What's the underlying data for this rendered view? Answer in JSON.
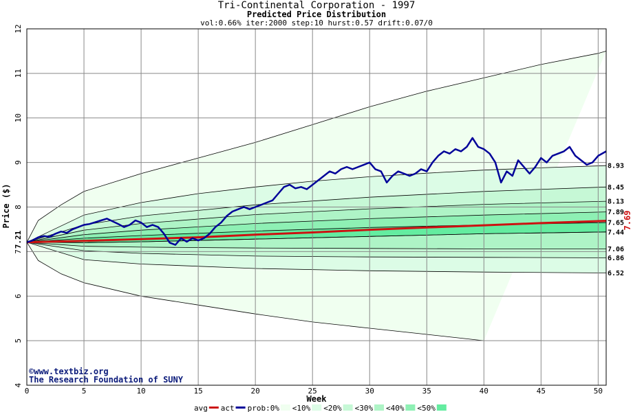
{
  "chart_data": {
    "type": "line",
    "title": "Tri-Continental Corporation - 1997",
    "subtitle": "Predicted Price Distribution",
    "params": "vol:0.66% iter:2000 step:10 hurst:0.57 drift:0.07/0",
    "xlabel": "Week",
    "ylabel": "Price ($)",
    "xlim": [
      0,
      50.7
    ],
    "ylim": [
      4,
      12
    ],
    "x_ticks": [
      0,
      5,
      10,
      15,
      20,
      25,
      30,
      35,
      40,
      45,
      50
    ],
    "y_ticks": [
      4,
      5,
      6,
      7,
      8,
      9,
      10,
      11,
      12
    ],
    "grid": true,
    "start_price_label": "7.21",
    "end_price_label": "7.69",
    "right_labels": [
      "8.93",
      "8.45",
      "8.13",
      "7.89",
      "7.65",
      "7.44",
      "7.06",
      "6.86",
      "6.52"
    ],
    "credits": [
      "©www.textbiz.org",
      "The Research Foundation of SUNY"
    ],
    "colors": {
      "avg": "#cc1111",
      "act": "#000099",
      "band0": "#f0fff0",
      "band10": "#dcfce6",
      "band20": "#c6f8d6",
      "band30": "#aef4c6",
      "band40": "#8ef0b4",
      "band50": "#64eca0"
    },
    "bands": [
      {
        "name": "prob:0%",
        "upper": [
          [
            0,
            7.21
          ],
          [
            1,
            7.7
          ],
          [
            3,
            8.05
          ],
          [
            5,
            8.35
          ],
          [
            10,
            8.75
          ],
          [
            15,
            9.1
          ],
          [
            20,
            9.45
          ],
          [
            25,
            9.85
          ],
          [
            30,
            10.25
          ],
          [
            35,
            10.6
          ],
          [
            40,
            10.9
          ],
          [
            45,
            11.2
          ],
          [
            50,
            11.45
          ],
          [
            50.7,
            11.5
          ]
        ],
        "lower": [
          [
            0,
            7.21
          ],
          [
            1,
            6.8
          ],
          [
            3,
            6.5
          ],
          [
            5,
            6.3
          ],
          [
            10,
            6.0
          ],
          [
            15,
            5.8
          ],
          [
            20,
            5.6
          ],
          [
            25,
            5.42
          ],
          [
            30,
            5.28
          ],
          [
            35,
            5.14
          ],
          [
            40,
            5.0
          ]
        ]
      },
      {
        "name": "<10%",
        "upper": [
          [
            0,
            7.21
          ],
          [
            5,
            7.82
          ],
          [
            10,
            8.1
          ],
          [
            15,
            8.3
          ],
          [
            20,
            8.45
          ],
          [
            25,
            8.58
          ],
          [
            30,
            8.68
          ],
          [
            35,
            8.76
          ],
          [
            40,
            8.83
          ],
          [
            45,
            8.88
          ],
          [
            50.7,
            8.93
          ]
        ],
        "lower": [
          [
            0,
            7.21
          ],
          [
            5,
            6.82
          ],
          [
            10,
            6.72
          ],
          [
            20,
            6.62
          ],
          [
            30,
            6.57
          ],
          [
            40,
            6.54
          ],
          [
            50.7,
            6.52
          ]
        ]
      },
      {
        "name": "<20%",
        "upper": [
          [
            0,
            7.21
          ],
          [
            5,
            7.6
          ],
          [
            10,
            7.8
          ],
          [
            20,
            8.05
          ],
          [
            30,
            8.22
          ],
          [
            40,
            8.35
          ],
          [
            50.7,
            8.45
          ]
        ],
        "lower": [
          [
            0,
            7.21
          ],
          [
            5,
            7.02
          ],
          [
            10,
            6.96
          ],
          [
            20,
            6.9
          ],
          [
            30,
            6.88
          ],
          [
            40,
            6.87
          ],
          [
            50.7,
            6.86
          ]
        ]
      },
      {
        "name": "<30%",
        "upper": [
          [
            0,
            7.21
          ],
          [
            5,
            7.48
          ],
          [
            10,
            7.63
          ],
          [
            20,
            7.83
          ],
          [
            30,
            7.96
          ],
          [
            40,
            8.06
          ],
          [
            50.7,
            8.13
          ]
        ],
        "lower": [
          [
            0,
            7.21
          ],
          [
            5,
            7.12
          ],
          [
            10,
            7.1
          ],
          [
            20,
            7.08
          ],
          [
            30,
            7.07
          ],
          [
            40,
            7.06
          ],
          [
            50.7,
            7.06
          ]
        ]
      },
      {
        "name": "<40%",
        "upper": [
          [
            0,
            7.21
          ],
          [
            5,
            7.38
          ],
          [
            10,
            7.48
          ],
          [
            20,
            7.63
          ],
          [
            30,
            7.74
          ],
          [
            40,
            7.82
          ],
          [
            50.7,
            7.89
          ]
        ],
        "lower": [
          [
            0,
            7.21
          ],
          [
            5,
            7.2
          ],
          [
            10,
            7.22
          ],
          [
            20,
            7.28
          ],
          [
            30,
            7.34
          ],
          [
            40,
            7.4
          ],
          [
            50.7,
            7.44
          ]
        ]
      },
      {
        "name": "<50%",
        "upper": [
          [
            0,
            7.21
          ],
          [
            5,
            7.3
          ],
          [
            10,
            7.36
          ],
          [
            20,
            7.46
          ],
          [
            30,
            7.54
          ],
          [
            40,
            7.6
          ],
          [
            50.7,
            7.65
          ]
        ],
        "lower": [
          [
            0,
            7.21
          ],
          [
            5,
            7.2
          ],
          [
            10,
            7.22
          ],
          [
            20,
            7.28
          ],
          [
            30,
            7.34
          ],
          [
            40,
            7.4
          ],
          [
            50.7,
            7.44
          ]
        ]
      }
    ],
    "series": [
      {
        "name": "avg",
        "values": [
          [
            0,
            7.21
          ],
          [
            5,
            7.24
          ],
          [
            10,
            7.28
          ],
          [
            15,
            7.32
          ],
          [
            20,
            7.38
          ],
          [
            25,
            7.43
          ],
          [
            30,
            7.49
          ],
          [
            35,
            7.54
          ],
          [
            40,
            7.59
          ],
          [
            45,
            7.64
          ],
          [
            50.7,
            7.69
          ]
        ]
      },
      {
        "name": "act",
        "values": [
          [
            0,
            7.21
          ],
          [
            0.5,
            7.25
          ],
          [
            1,
            7.32
          ],
          [
            1.5,
            7.35
          ],
          [
            2,
            7.33
          ],
          [
            2.5,
            7.4
          ],
          [
            3,
            7.45
          ],
          [
            3.5,
            7.42
          ],
          [
            4,
            7.5
          ],
          [
            4.5,
            7.55
          ],
          [
            5,
            7.6
          ],
          [
            5.5,
            7.62
          ],
          [
            6,
            7.66
          ],
          [
            6.5,
            7.7
          ],
          [
            7,
            7.74
          ],
          [
            7.5,
            7.68
          ],
          [
            8,
            7.62
          ],
          [
            8.5,
            7.55
          ],
          [
            9,
            7.6
          ],
          [
            9.5,
            7.7
          ],
          [
            10,
            7.65
          ],
          [
            10.5,
            7.55
          ],
          [
            11,
            7.6
          ],
          [
            11.5,
            7.55
          ],
          [
            12,
            7.4
          ],
          [
            12.5,
            7.2
          ],
          [
            13,
            7.15
          ],
          [
            13.5,
            7.3
          ],
          [
            14,
            7.22
          ],
          [
            14.5,
            7.3
          ],
          [
            15,
            7.25
          ],
          [
            15.5,
            7.3
          ],
          [
            16,
            7.4
          ],
          [
            16.5,
            7.55
          ],
          [
            17,
            7.65
          ],
          [
            17.5,
            7.8
          ],
          [
            18,
            7.9
          ],
          [
            18.5,
            7.95
          ],
          [
            19,
            8.0
          ],
          [
            19.5,
            7.95
          ],
          [
            20,
            8.0
          ],
          [
            20.5,
            8.05
          ],
          [
            21,
            8.1
          ],
          [
            21.5,
            8.15
          ],
          [
            22,
            8.3
          ],
          [
            22.5,
            8.45
          ],
          [
            23,
            8.5
          ],
          [
            23.5,
            8.42
          ],
          [
            24,
            8.45
          ],
          [
            24.5,
            8.4
          ],
          [
            25,
            8.5
          ],
          [
            25.5,
            8.6
          ],
          [
            26,
            8.7
          ],
          [
            26.5,
            8.8
          ],
          [
            27,
            8.75
          ],
          [
            27.5,
            8.85
          ],
          [
            28,
            8.9
          ],
          [
            28.5,
            8.85
          ],
          [
            29,
            8.9
          ],
          [
            29.5,
            8.95
          ],
          [
            30,
            9.0
          ],
          [
            30.5,
            8.85
          ],
          [
            31,
            8.8
          ],
          [
            31.5,
            8.55
          ],
          [
            32,
            8.7
          ],
          [
            32.5,
            8.8
          ],
          [
            33,
            8.75
          ],
          [
            33.5,
            8.7
          ],
          [
            34,
            8.75
          ],
          [
            34.5,
            8.85
          ],
          [
            35,
            8.8
          ],
          [
            35.5,
            9.0
          ],
          [
            36,
            9.15
          ],
          [
            36.5,
            9.25
          ],
          [
            37,
            9.2
          ],
          [
            37.5,
            9.3
          ],
          [
            38,
            9.25
          ],
          [
            38.5,
            9.35
          ],
          [
            39,
            9.55
          ],
          [
            39.5,
            9.35
          ],
          [
            40,
            9.3
          ],
          [
            40.5,
            9.2
          ],
          [
            41,
            9.0
          ],
          [
            41.5,
            8.55
          ],
          [
            42,
            8.8
          ],
          [
            42.5,
            8.7
          ],
          [
            43,
            9.05
          ],
          [
            43.5,
            8.9
          ],
          [
            44,
            8.75
          ],
          [
            44.5,
            8.9
          ],
          [
            45,
            9.1
          ],
          [
            45.5,
            9.0
          ],
          [
            46,
            9.15
          ],
          [
            46.5,
            9.2
          ],
          [
            47,
            9.25
          ],
          [
            47.5,
            9.35
          ],
          [
            48,
            9.15
          ],
          [
            48.5,
            9.05
          ],
          [
            49,
            8.95
          ],
          [
            49.5,
            9.0
          ],
          [
            50,
            9.15
          ],
          [
            50.7,
            9.25
          ]
        ]
      }
    ],
    "legend": [
      "avg",
      "act",
      "prob:0%",
      "<10%",
      "<20%",
      "<30%",
      "<40%",
      "<50%"
    ]
  }
}
